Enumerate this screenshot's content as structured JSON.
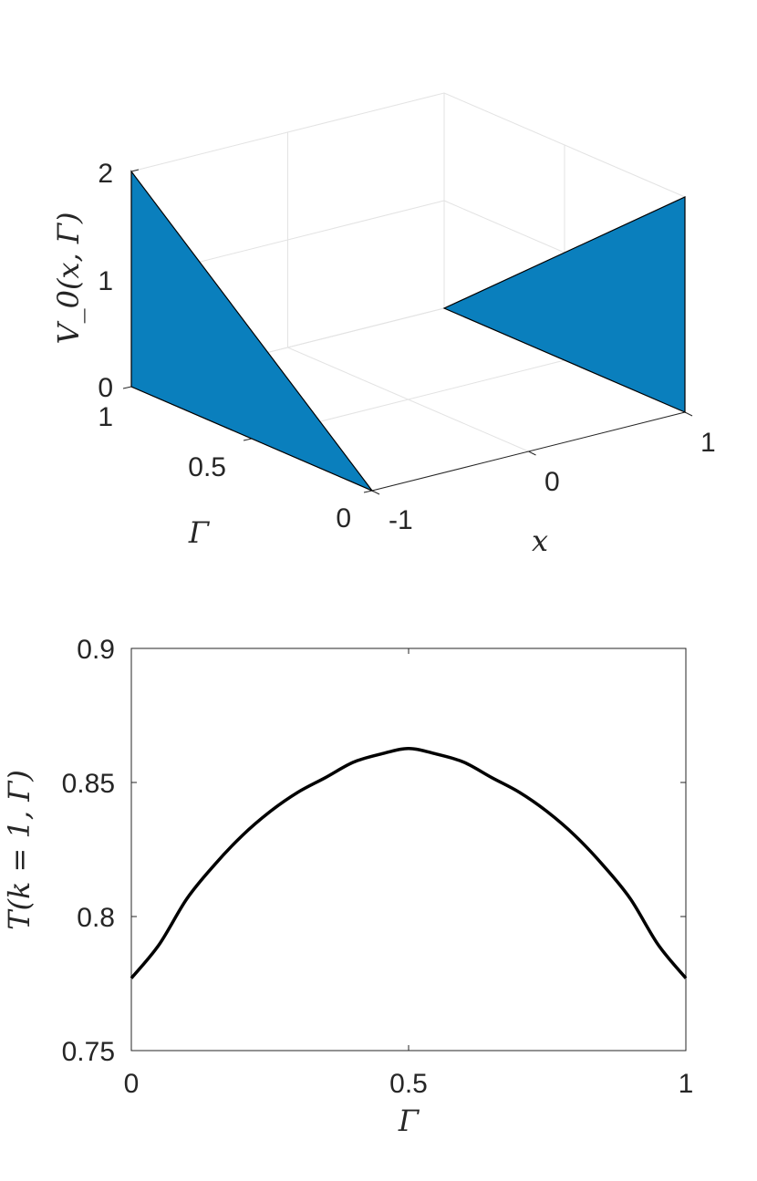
{
  "chart_data": [
    {
      "type": "surface3d",
      "zlabel": "V_0(x, Γ)",
      "xlabel": "x",
      "ylabel": "Γ",
      "xlim": [
        -1,
        1
      ],
      "ylim": [
        0,
        1
      ],
      "zlim": [
        0,
        2
      ],
      "x_ticks": [
        "-1",
        "0",
        "1"
      ],
      "y_ticks": [
        "0",
        "0.5",
        "1"
      ],
      "z_ticks": [
        "0",
        "1",
        "2"
      ],
      "grid": true,
      "face_color": "#0a7fbd",
      "surfaces": [
        {
          "name": "wall at x = -1",
          "x": -1,
          "gamma": [
            0,
            1
          ],
          "V_top": [
            0,
            2
          ]
        },
        {
          "name": "wall at x = 1",
          "x": 1,
          "gamma": [
            0,
            1
          ],
          "V_top": [
            2,
            0
          ]
        }
      ]
    },
    {
      "type": "line",
      "xlabel": "Γ",
      "ylabel": "T(k = 1, Γ)",
      "xlim": [
        0,
        1
      ],
      "ylim": [
        0.75,
        0.9
      ],
      "x_ticks": [
        "0",
        "0.5",
        "1"
      ],
      "y_ticks": [
        "0.75",
        "0.8",
        "0.85",
        "0.9"
      ],
      "grid": false,
      "series": [
        {
          "color": "#000000",
          "x": [
            0,
            0.05,
            0.1,
            0.15,
            0.2,
            0.25,
            0.3,
            0.35,
            0.4,
            0.45,
            0.5,
            0.55,
            0.6,
            0.65,
            0.7,
            0.75,
            0.8,
            0.85,
            0.9,
            0.95,
            1
          ],
          "y": [
            0.777,
            0.7895,
            0.8066,
            0.8193,
            0.8302,
            0.8391,
            0.8463,
            0.8518,
            0.8575,
            0.8606,
            0.8627,
            0.8606,
            0.8575,
            0.8518,
            0.8463,
            0.8391,
            0.8302,
            0.8193,
            0.8066,
            0.7895,
            0.777
          ]
        }
      ]
    }
  ]
}
